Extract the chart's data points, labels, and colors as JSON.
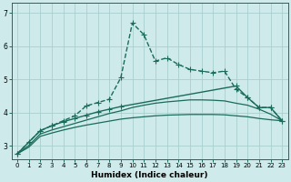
{
  "xlabel": "Humidex (Indice chaleur)",
  "background_color": "#ceeaea",
  "grid_color": "#aacece",
  "line_color": "#1a6b5a",
  "xlim": [
    -0.5,
    23.5
  ],
  "ylim": [
    2.6,
    7.3
  ],
  "yticks": [
    3,
    4,
    5,
    6,
    7
  ],
  "xticks": [
    0,
    1,
    2,
    3,
    4,
    5,
    6,
    7,
    8,
    9,
    10,
    11,
    12,
    13,
    14,
    15,
    16,
    17,
    18,
    19,
    20,
    21,
    22,
    23
  ],
  "series": [
    {
      "x": [
        0,
        1,
        2,
        3,
        4,
        5,
        6,
        7,
        8,
        9,
        10,
        11,
        12,
        13,
        14,
        15,
        16,
        17,
        18,
        19,
        20,
        21,
        22,
        23
      ],
      "y": [
        2.75,
        3.1,
        3.45,
        3.6,
        3.75,
        3.9,
        4.2,
        4.3,
        4.4,
        5.05,
        6.7,
        6.35,
        5.55,
        5.65,
        5.45,
        5.3,
        5.25,
        5.2,
        5.25,
        4.7,
        4.45,
        4.15,
        4.15,
        3.75
      ],
      "marker": "P",
      "markersize": 2.5,
      "linewidth": 1.0,
      "linestyle": "--"
    },
    {
      "x": [
        0,
        2,
        3,
        4,
        5,
        6,
        7,
        8,
        9,
        19,
        20,
        21,
        22,
        23
      ],
      "y": [
        2.75,
        3.45,
        3.6,
        3.72,
        3.82,
        3.92,
        4.02,
        4.1,
        4.18,
        4.8,
        4.45,
        4.15,
        4.15,
        3.75
      ],
      "marker": "P",
      "markersize": 2.5,
      "linewidth": 1.0,
      "linestyle": "-"
    },
    {
      "x": [
        0,
        1,
        2,
        3,
        4,
        5,
        6,
        7,
        8,
        9,
        10,
        11,
        12,
        13,
        14,
        15,
        16,
        17,
        18,
        19,
        20,
        21,
        22,
        23
      ],
      "y": [
        2.75,
        3.0,
        3.35,
        3.47,
        3.57,
        3.67,
        3.77,
        3.87,
        3.97,
        4.05,
        4.15,
        4.22,
        4.28,
        4.32,
        4.35,
        4.38,
        4.38,
        4.37,
        4.35,
        4.28,
        4.22,
        4.1,
        3.95,
        3.75
      ],
      "marker": null,
      "markersize": 0,
      "linewidth": 0.9,
      "linestyle": "-"
    },
    {
      "x": [
        0,
        1,
        2,
        3,
        4,
        5,
        6,
        7,
        8,
        9,
        10,
        11,
        12,
        13,
        14,
        15,
        16,
        17,
        18,
        19,
        20,
        21,
        22,
        23
      ],
      "y": [
        2.75,
        2.95,
        3.28,
        3.38,
        3.47,
        3.55,
        3.62,
        3.68,
        3.74,
        3.8,
        3.84,
        3.87,
        3.9,
        3.92,
        3.93,
        3.94,
        3.94,
        3.94,
        3.93,
        3.9,
        3.87,
        3.82,
        3.78,
        3.75
      ],
      "marker": null,
      "markersize": 0,
      "linewidth": 0.9,
      "linestyle": "-"
    }
  ]
}
